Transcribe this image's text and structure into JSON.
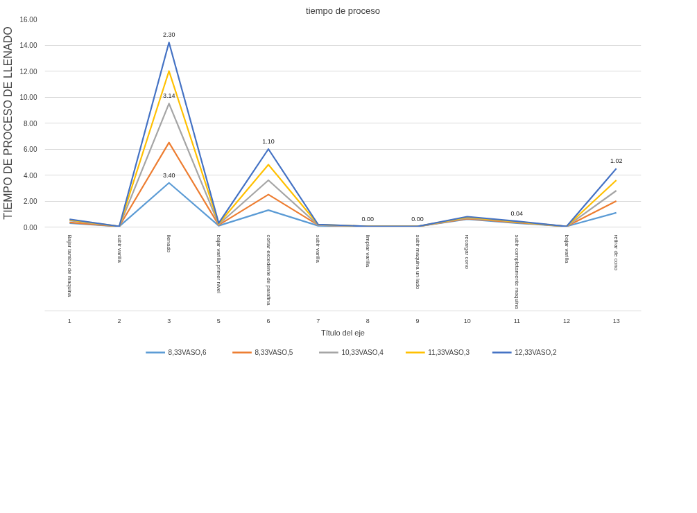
{
  "chart_data": {
    "type": "line",
    "title": "tiempo de proceso",
    "xlabel": "Título del eje",
    "ylabel": "TIEMPO DE PROCESO DE LLENADO",
    "categories": [
      "Bajar tambor de maquina",
      "subir varilla",
      "llenado",
      "bajar varilla primer nivel",
      "cortar excedente de parafina",
      "subir varilla",
      "limpiar varilla",
      "subir maquina un lado",
      "recargar cono",
      "subir completamente maquina",
      "bajar varilla",
      "retirar de cono"
    ],
    "annotations": [
      "1",
      "2",
      "3",
      "5",
      "6",
      "7",
      "8",
      "9",
      "10",
      "11",
      "12",
      "13",
      {
        "text": "3.40",
        "x": "llenado",
        "y": 3.4
      },
      {
        "text": "3.14",
        "x": "llenado",
        "y": 9.5
      },
      {
        "text": "2.30",
        "x": "llenado",
        "y": 14.2
      },
      {
        "text": "1.10",
        "x": "cortar excedente de parafina",
        "y": 6.0
      },
      {
        "text": "0.00",
        "x": "limpiar varilla",
        "y": 0.05
      },
      {
        "text": "0.00",
        "x": "subir maquina un lado",
        "y": 0.05
      },
      {
        "text": "0.04",
        "x": "subir completamente maquina",
        "y": 0.45
      },
      {
        "text": "1.02",
        "x": "retirar de cono",
        "y": 4.5
      }
    ],
    "ylim": [
      0,
      16
    ],
    "yticks": [
      {
        "value": 0,
        "label": "0.00"
      },
      {
        "value": 2,
        "label": "2.00"
      },
      {
        "value": 4,
        "label": "4.00"
      },
      {
        "value": 6,
        "label": "6.00"
      },
      {
        "value": 8,
        "label": "8.00"
      },
      {
        "value": 10,
        "label": "10.00"
      },
      {
        "value": 12,
        "label": "12.00"
      },
      {
        "value": 14,
        "label": "14.00"
      },
      {
        "value": 16,
        "label": "16.00"
      }
    ],
    "grid": "y",
    "legend": "bottom",
    "marker": "none",
    "line_style": "solid",
    "series": [
      {
        "name": "8,33VASO,6",
        "color": "#5b9bd5",
        "values": [
          0.3,
          0.05,
          3.4,
          0.1,
          1.3,
          0.1,
          0.05,
          0.05,
          0.6,
          0.3,
          0.05,
          1.1
        ]
      },
      {
        "name": "8,33VASO,5",
        "color": "#ed7d31",
        "values": [
          0.35,
          0.05,
          6.5,
          0.15,
          2.5,
          0.15,
          0.05,
          0.05,
          0.65,
          0.35,
          0.05,
          2.0
        ]
      },
      {
        "name": "10,33VASO,4",
        "color": "#a5a5a5",
        "values": [
          0.5,
          0.05,
          9.5,
          0.2,
          3.6,
          0.15,
          0.05,
          0.05,
          0.7,
          0.4,
          0.05,
          2.8
        ]
      },
      {
        "name": "11,33VASO,3",
        "color": "#ffc000",
        "values": [
          0.55,
          0.05,
          12.0,
          0.25,
          4.8,
          0.2,
          0.05,
          0.05,
          0.75,
          0.4,
          0.05,
          3.6
        ]
      },
      {
        "name": "12,33VASO,2",
        "color": "#4472c4",
        "values": [
          0.6,
          0.05,
          14.2,
          0.3,
          6.0,
          0.2,
          0.05,
          0.05,
          0.8,
          0.45,
          0.05,
          4.5
        ]
      }
    ]
  }
}
